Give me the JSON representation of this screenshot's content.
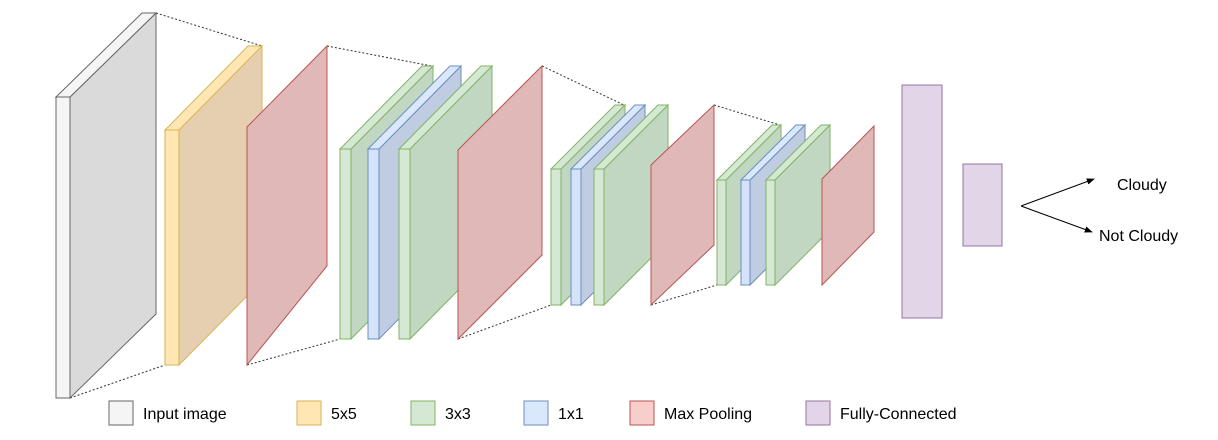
{
  "colors": {
    "input": {
      "front": "#f5f5f5",
      "side": "#dadada",
      "stroke": "#666666"
    },
    "conv5x5": {
      "front": "#ffe6b3",
      "side": "#e6cfb0",
      "stroke": "#d6b656"
    },
    "conv3x3": {
      "front": "#d5e8d4",
      "side": "#c2d7c1",
      "stroke": "#82b366"
    },
    "conv1x1": {
      "front": "#dae8fc",
      "side": "#bfcce1",
      "stroke": "#6c8ebf"
    },
    "pool": {
      "side": "#e0b8b8",
      "stroke": "#b85450"
    },
    "fc": {
      "fill": "#e1d5e7",
      "stroke": "#9673a6"
    }
  },
  "outputs": [
    {
      "label": "Cloudy"
    },
    {
      "label": "Not Cloudy"
    }
  ],
  "legend": [
    {
      "label": "Input image",
      "color": "input"
    },
    {
      "label": "5x5",
      "color": "conv5x5"
    },
    {
      "label": "3x3",
      "color": "conv3x3"
    },
    {
      "label": "1x1",
      "color": "conv1x1"
    },
    {
      "label": "Max Pooling",
      "color": "pool"
    },
    {
      "label": "Fully-Connected",
      "color": "fc"
    }
  ]
}
